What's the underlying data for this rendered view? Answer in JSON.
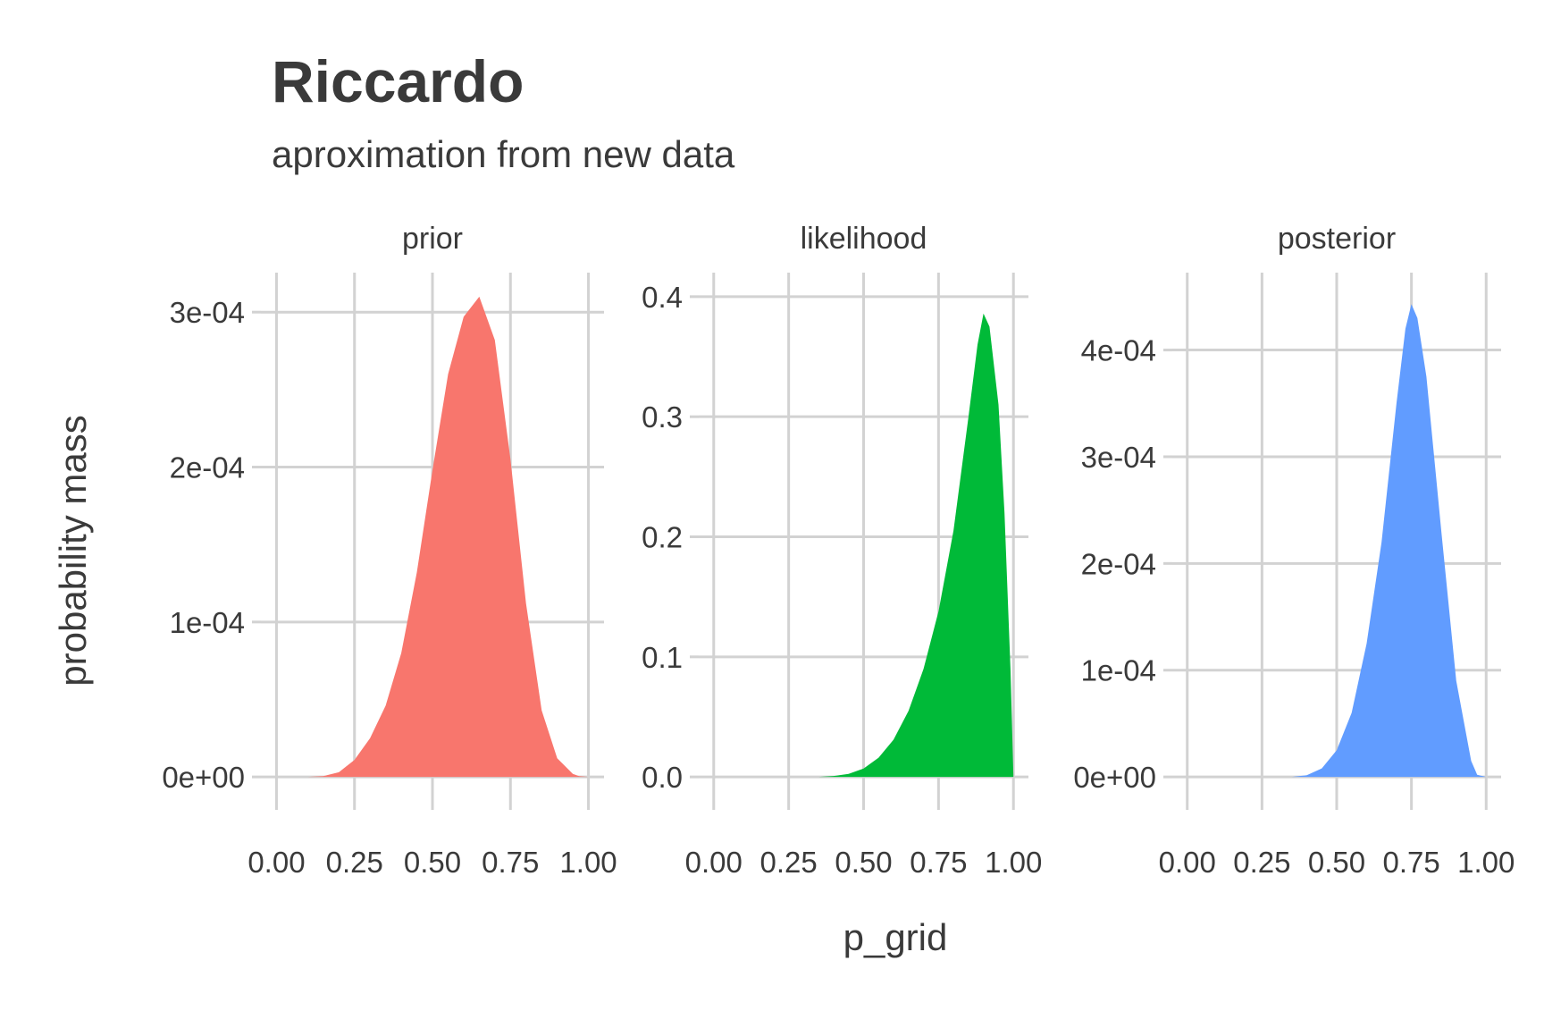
{
  "chart_data": {
    "type": "area",
    "title": "Riccardo",
    "subtitle": "aproximation from new data",
    "xlabel": "p_grid",
    "ylabel": "probability mass",
    "grid": true,
    "legend": "none",
    "x_ticks": [
      "0.00",
      "0.25",
      "0.50",
      "0.75",
      "1.00"
    ],
    "xlim": [
      0,
      1
    ],
    "panels": [
      {
        "name": "prior",
        "color": "#F8766D",
        "ylim": [
          0,
          0.00031
        ],
        "y_ticks": [
          {
            "value": 0,
            "label": "0e+00"
          },
          {
            "value": 0.0001,
            "label": "1e-04"
          },
          {
            "value": 0.0002,
            "label": "2e-04"
          },
          {
            "value": 0.0003,
            "label": "3e-04"
          }
        ],
        "x": [
          0.0,
          0.1,
          0.15,
          0.2,
          0.25,
          0.3,
          0.35,
          0.4,
          0.45,
          0.5,
          0.55,
          0.6,
          0.65,
          0.7,
          0.75,
          0.8,
          0.85,
          0.9,
          0.95,
          0.97,
          1.0
        ],
        "values": [
          0,
          0,
          5e-07,
          3e-06,
          1.1e-05,
          2.5e-05,
          4.6e-05,
          8e-05,
          0.000132,
          0.000198,
          0.00026,
          0.000297,
          0.00031,
          0.000282,
          0.000205,
          0.000112,
          4.3e-05,
          1.2e-05,
          2e-06,
          5e-07,
          0
        ]
      },
      {
        "name": "likelihood",
        "color": "#00BA38",
        "ylim": [
          0,
          0.4
        ],
        "y_ticks": [
          {
            "value": 0,
            "label": "0.0"
          },
          {
            "value": 0.1,
            "label": "0.1"
          },
          {
            "value": 0.2,
            "label": "0.2"
          },
          {
            "value": 0.3,
            "label": "0.3"
          },
          {
            "value": 0.4,
            "label": "0.4"
          }
        ],
        "x": [
          0.0,
          0.35,
          0.4,
          0.45,
          0.5,
          0.55,
          0.6,
          0.65,
          0.7,
          0.75,
          0.8,
          0.85,
          0.88,
          0.9,
          0.92,
          0.95,
          0.97,
          0.99,
          1.0
        ],
        "values": [
          0,
          0,
          0.0008,
          0.0025,
          0.007,
          0.016,
          0.031,
          0.055,
          0.09,
          0.138,
          0.205,
          0.3,
          0.36,
          0.386,
          0.375,
          0.31,
          0.22,
          0.09,
          0
        ]
      },
      {
        "name": "posterior",
        "color": "#619CFF",
        "ylim": [
          0,
          0.00045
        ],
        "y_ticks": [
          {
            "value": 0,
            "label": "0e+00"
          },
          {
            "value": 0.0001,
            "label": "1e-04"
          },
          {
            "value": 0.0002,
            "label": "2e-04"
          },
          {
            "value": 0.0003,
            "label": "3e-04"
          },
          {
            "value": 0.0004,
            "label": "4e-04"
          }
        ],
        "x": [
          0.0,
          0.35,
          0.4,
          0.45,
          0.5,
          0.55,
          0.6,
          0.65,
          0.7,
          0.73,
          0.75,
          0.77,
          0.8,
          0.85,
          0.9,
          0.95,
          0.97,
          1.0
        ],
        "values": [
          0,
          0,
          1.5e-06,
          8e-06,
          2.5e-05,
          6e-05,
          0.000125,
          0.00022,
          0.00035,
          0.00042,
          0.000443,
          0.00043,
          0.000375,
          0.00023,
          9e-05,
          1.5e-05,
          2e-06,
          0
        ]
      }
    ]
  }
}
